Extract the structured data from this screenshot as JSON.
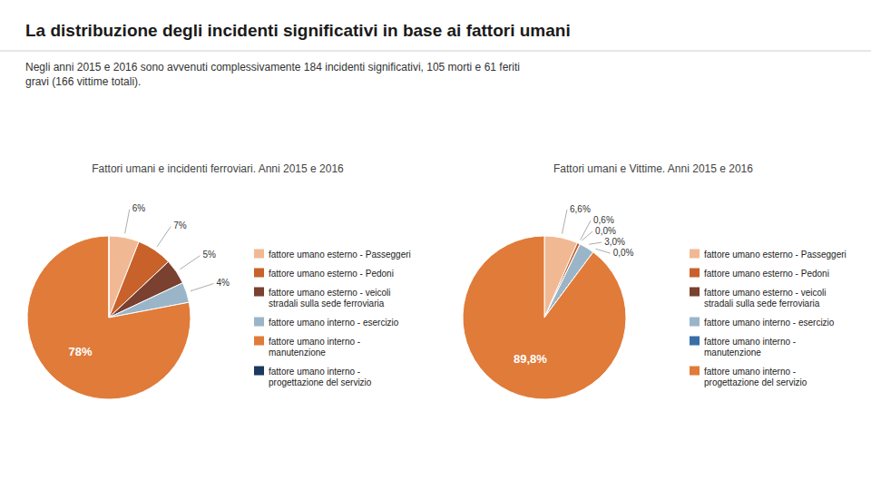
{
  "title": "La distribuzione degli incidenti significativi in base ai fattori umani",
  "subtitle": "Negli anni 2015 e 2016 sono avvenuti complessivamente 184 incidenti significativi, 105 morti e 61 feriti\ngravi (166 vittime totali).",
  "chart_data": [
    {
      "type": "pie",
      "title": "Fattori umani e incidenti ferroviari. Anni 2015 e 2016",
      "categories": [
        "fattore umano esterno - Passeggeri",
        "fattore umano esterno - Pedoni",
        "fattore umano esterno - veicoli\nstradali sulla sede ferroviaria",
        "fattore umano interno - esercizio",
        "fattore umano interno -\nmanutenzione",
        "fattore umano interno -\nprogettazione del servizio"
      ],
      "values": [
        6,
        7,
        5,
        4,
        78,
        0.001
      ],
      "value_labels": [
        "6%",
        "7%",
        "5%",
        "4%",
        "78%",
        null
      ],
      "colors": [
        "#F0B993",
        "#C8622A",
        "#7A4030",
        "#9BB5C8",
        "#E07B39",
        "#1A3A60"
      ],
      "data_labels": true,
      "legend": "right"
    },
    {
      "type": "pie",
      "title": "Fattori umani e Vittime. Anni 2015 e 2016",
      "categories": [
        "fattore umano esterno - Passeggeri",
        "fattore umano esterno - Pedoni",
        "fattore umano esterno - veicoli\nstradali sulla sede ferroviaria",
        "fattore umano interno - esercizio",
        "fattore umano interno -\nmanutenzione",
        "fattore umano interno -\nprogettazione del servizio"
      ],
      "values": [
        6.6,
        0.6,
        0.001,
        3.0,
        0.001,
        89.8
      ],
      "value_labels": [
        "6,6%",
        "0,6%",
        "0,0%",
        "3,0%",
        "0,0%",
        "89,8%"
      ],
      "colors": [
        "#F0B993",
        "#C8622A",
        "#7A4030",
        "#9BB5C8",
        "#3A6EA8",
        "#E07B39"
      ],
      "data_labels": true,
      "legend": "right"
    }
  ]
}
